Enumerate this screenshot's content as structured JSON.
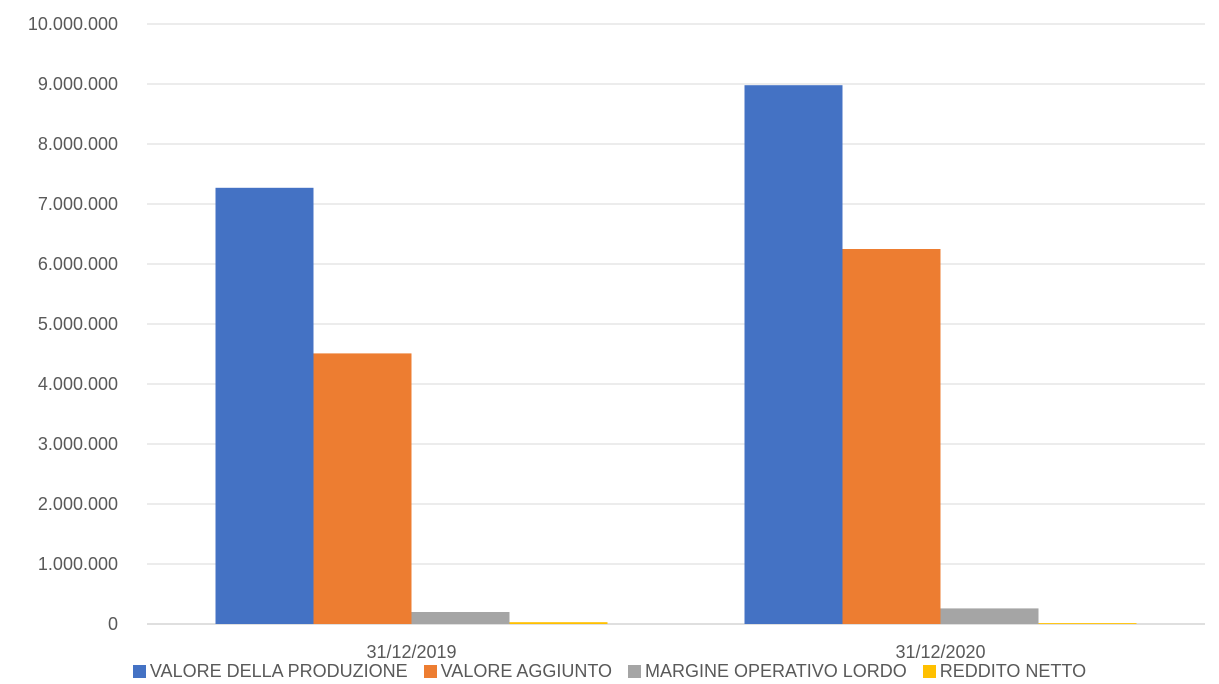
{
  "chart_data": {
    "type": "bar",
    "categories": [
      "31/12/2019",
      "31/12/2020"
    ],
    "series": [
      {
        "name": "VALORE DELLA PRODUZIONE",
        "color": "#4472C4",
        "values": [
          7270000,
          8980000
        ]
      },
      {
        "name": "VALORE AGGIUNTO",
        "color": "#ED7D31",
        "values": [
          4510000,
          6250000
        ]
      },
      {
        "name": "MARGINE OPERATIVO LORDO",
        "color": "#A5A5A5",
        "values": [
          200000,
          260000
        ]
      },
      {
        "name": "REDDITO NETTO",
        "color": "#FFC000",
        "values": [
          30000,
          15000
        ]
      }
    ],
    "ylim": [
      0,
      10000000
    ],
    "yticks": [
      0,
      1000000,
      2000000,
      3000000,
      4000000,
      5000000,
      6000000,
      7000000,
      8000000,
      9000000,
      10000000
    ],
    "ytick_labels": [
      "0",
      "1.000.000",
      "2.000.000",
      "3.000.000",
      "4.000.000",
      "5.000.000",
      "6.000.000",
      "7.000.000",
      "8.000.000",
      "9.000.000",
      "10.000.000"
    ],
    "grid": true,
    "legend_position": "bottom"
  }
}
